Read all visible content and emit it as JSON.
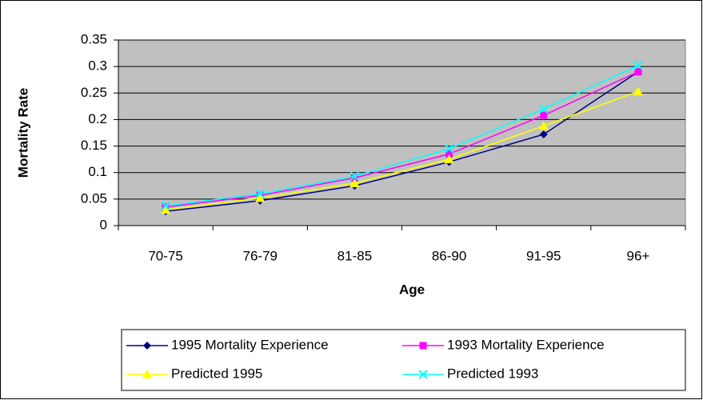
{
  "chart_data": {
    "type": "line",
    "x_label": "Age",
    "y_label": "Mortality Rate",
    "categories": [
      "70-75",
      "76-79",
      "81-85",
      "86-90",
      "91-95",
      "96+"
    ],
    "series": [
      {
        "name": "1995 Mortality Experience",
        "color": "#000080",
        "marker": "diamond",
        "values": [
          0.027,
          0.047,
          0.075,
          0.12,
          0.172,
          0.29
        ]
      },
      {
        "name": "1993 Mortality Experience",
        "color": "#ff00ff",
        "marker": "square",
        "values": [
          0.035,
          0.057,
          0.09,
          0.135,
          0.208,
          0.29
        ]
      },
      {
        "name": "Predicted 1995",
        "color": "#ffff00",
        "marker": "triangle",
        "values": [
          0.03,
          0.052,
          0.08,
          0.125,
          0.188,
          0.253
        ]
      },
      {
        "name": "Predicted 1993",
        "color": "#00ffff",
        "marker": "x",
        "values": [
          0.037,
          0.06,
          0.093,
          0.145,
          0.22,
          0.302
        ]
      }
    ],
    "ylim": [
      0,
      0.35
    ],
    "yticks": [
      0,
      0.05,
      0.1,
      0.15,
      0.2,
      0.25,
      0.3,
      0.35
    ],
    "grid": true,
    "plot_background": "#c0c0c0",
    "legend": "bottom"
  }
}
